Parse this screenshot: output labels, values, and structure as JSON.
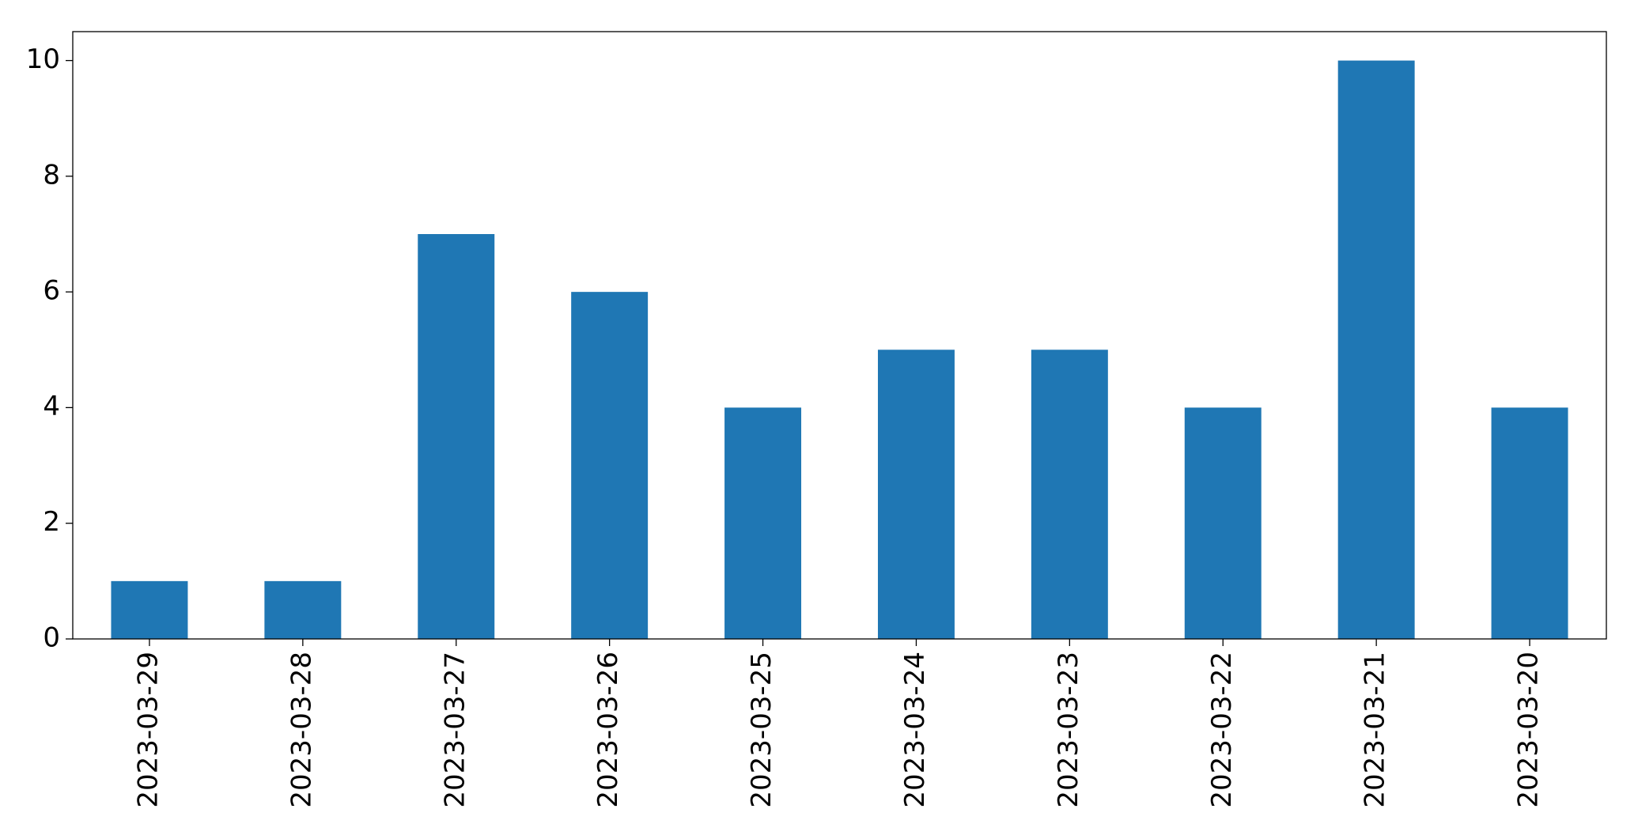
{
  "chart_data": {
    "type": "bar",
    "categories": [
      "2023-03-29",
      "2023-03-28",
      "2023-03-27",
      "2023-03-26",
      "2023-03-25",
      "2023-03-24",
      "2023-03-23",
      "2023-03-22",
      "2023-03-21",
      "2023-03-20"
    ],
    "values": [
      1,
      1,
      7,
      6,
      4,
      5,
      5,
      4,
      10,
      4
    ],
    "color": "#1f77b4",
    "ylim": [
      0,
      10.5
    ],
    "yticks": [
      0,
      2,
      4,
      6,
      8,
      10
    ],
    "grid": false
  }
}
